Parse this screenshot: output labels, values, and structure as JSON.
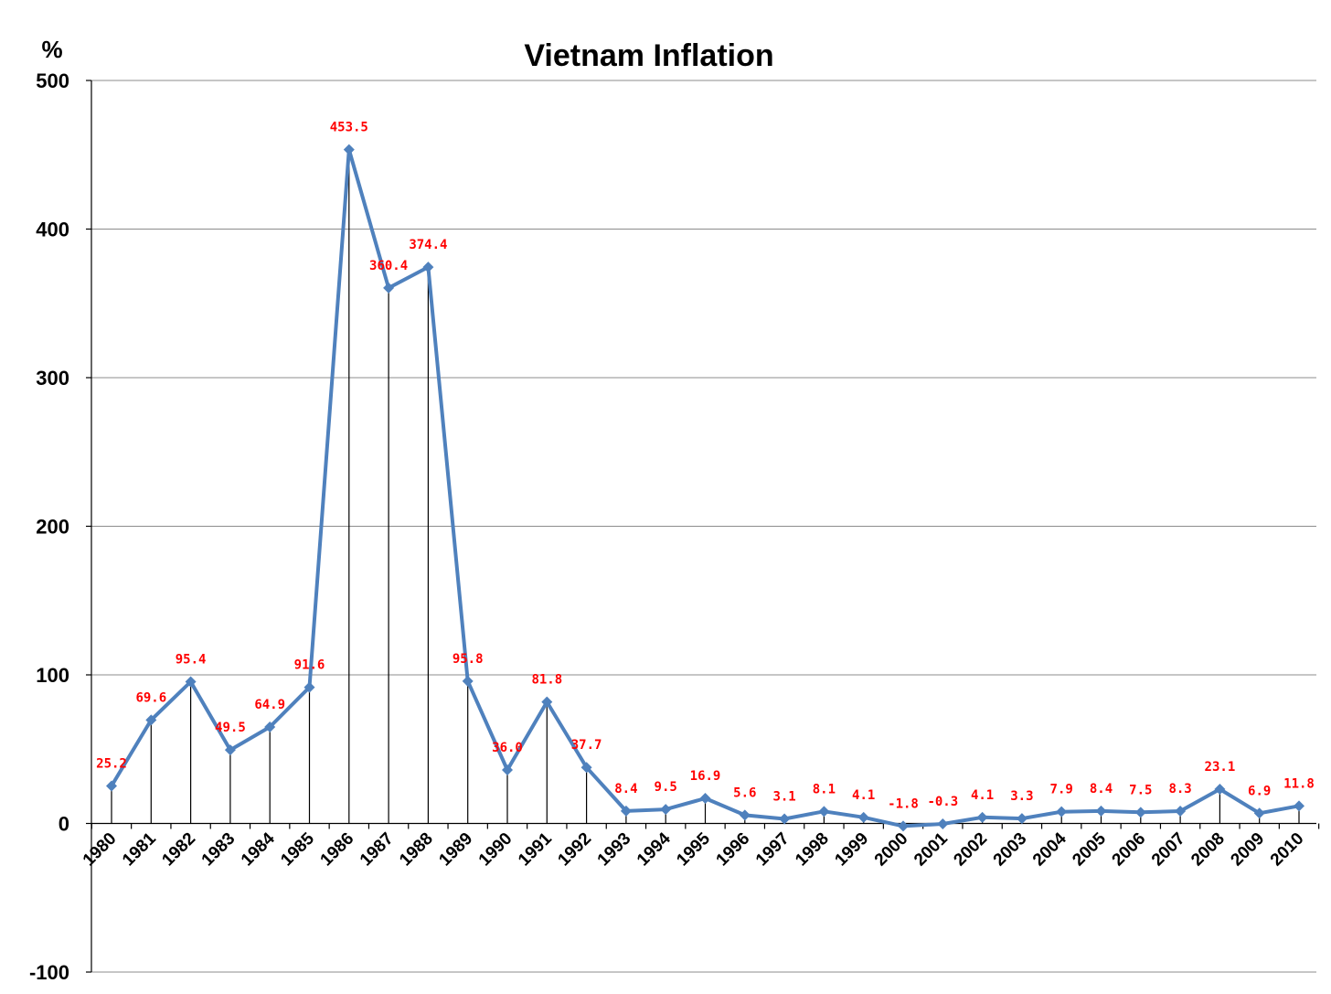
{
  "chart_data": {
    "type": "line",
    "title": "Vietnam Inflation",
    "ylabel": "%",
    "xlabel": "",
    "ylim": [
      -100,
      500
    ],
    "yticks": [
      500,
      400,
      300,
      200,
      100,
      0,
      -100
    ],
    "grid": "horizontal",
    "legend": "none",
    "drop_lines": true,
    "colors": {
      "line": "#4f81bd",
      "data_label": "#ff0000",
      "grid": "#8c8c8c"
    },
    "categories": [
      "1980",
      "1981",
      "1982",
      "1983",
      "1984",
      "1985",
      "1986",
      "1987",
      "1988",
      "1989",
      "1990",
      "1991",
      "1992",
      "1993",
      "1994",
      "1995",
      "1996",
      "1997",
      "1998",
      "1999",
      "2000",
      "2001",
      "2002",
      "2003",
      "2004",
      "2005",
      "2006",
      "2007",
      "2008",
      "2009",
      "2010"
    ],
    "values": [
      25.2,
      69.6,
      95.4,
      49.5,
      64.9,
      91.6,
      453.5,
      360.4,
      374.4,
      95.8,
      36.0,
      81.8,
      37.7,
      8.4,
      9.5,
      16.9,
      5.6,
      3.1,
      8.1,
      4.1,
      -1.8,
      -0.3,
      4.1,
      3.3,
      7.9,
      8.4,
      7.5,
      8.3,
      23.1,
      6.9,
      11.8
    ],
    "data_labels": [
      "25.2",
      "69.6",
      "95.4",
      "49.5",
      "64.9",
      "91.6",
      "453.5",
      "360.4",
      "374.4",
      "95.8",
      "36.0",
      "81.8",
      "37.7",
      "8.4",
      "9.5",
      "16.9",
      "5.6",
      "3.1",
      "8.1",
      "4.1",
      "-1.8",
      "-0.3",
      "4.1",
      "3.3",
      "7.9",
      "8.4",
      "7.5",
      "8.3",
      "23.1",
      "6.9",
      "11.8"
    ]
  }
}
